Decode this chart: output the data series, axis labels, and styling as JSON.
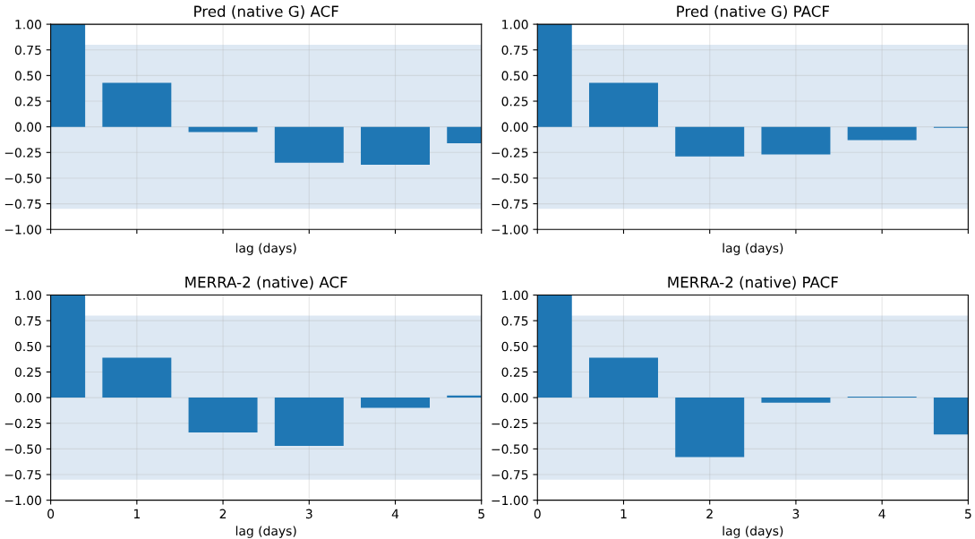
{
  "chart_data": [
    {
      "type": "bar",
      "title": "Pred (native G) ACF",
      "xlabel": "lag (days)",
      "x": [
        0,
        1,
        2,
        3,
        4,
        5
      ],
      "values": [
        1,
        0.43,
        -0.05,
        -0.35,
        -0.37,
        -0.16
      ],
      "color": "#1f77b4",
      "xlim": [
        0,
        5
      ],
      "xticks": [
        0,
        1,
        2,
        3,
        4,
        5
      ],
      "ylim": [
        -1,
        1
      ],
      "yticks": [
        {
          "value": -1,
          "label": "−1.00"
        },
        {
          "value": -0.75,
          "label": "−0.75"
        },
        {
          "value": -0.5,
          "label": "−0.50"
        },
        {
          "value": -0.25,
          "label": "−0.25"
        },
        {
          "value": 0,
          "label": "0.00"
        },
        {
          "value": 0.25,
          "label": "0.25"
        },
        {
          "value": 0.5,
          "label": "0.50"
        },
        {
          "value": 0.75,
          "label": "0.75"
        },
        {
          "value": 1,
          "label": "1.00"
        }
      ],
      "grid": true,
      "tick_labels": "y",
      "bands": [
        {
          "axis": "y",
          "from": -0.8,
          "to": 0.8,
          "color": "#dde8f3"
        }
      ]
    },
    {
      "type": "bar",
      "title": "Pred (native G) PACF",
      "xlabel": "lag (days)",
      "x": [
        0,
        1,
        2,
        3,
        4,
        5
      ],
      "values": [
        1,
        0.43,
        -0.29,
        -0.27,
        -0.13,
        -0.01
      ],
      "color": "#1f77b4",
      "xlim": [
        0,
        5
      ],
      "xticks": [
        0,
        1,
        2,
        3,
        4,
        5
      ],
      "ylim": [
        -1,
        1
      ],
      "yticks": [
        {
          "value": -1,
          "label": "−1.00"
        },
        {
          "value": -0.75,
          "label": "−0.75"
        },
        {
          "value": -0.5,
          "label": "−0.50"
        },
        {
          "value": -0.25,
          "label": "−0.25"
        },
        {
          "value": 0,
          "label": "0.00"
        },
        {
          "value": 0.25,
          "label": "0.25"
        },
        {
          "value": 0.5,
          "label": "0.50"
        },
        {
          "value": 0.75,
          "label": "0.75"
        },
        {
          "value": 1,
          "label": "1.00"
        }
      ],
      "grid": true,
      "tick_labels": "y",
      "bands": [
        {
          "axis": "y",
          "from": -0.8,
          "to": 0.8,
          "color": "#dde8f3"
        }
      ]
    },
    {
      "type": "bar",
      "title": "MERRA-2 (native) ACF",
      "xlabel": "lag (days)",
      "x": [
        0,
        1,
        2,
        3,
        4,
        5
      ],
      "values": [
        1,
        0.39,
        -0.34,
        -0.47,
        -0.1,
        0.02
      ],
      "color": "#1f77b4",
      "xlim": [
        0,
        5
      ],
      "xticks": [
        0,
        1,
        2,
        3,
        4,
        5
      ],
      "ylim": [
        -1,
        1
      ],
      "yticks": [
        {
          "value": -1,
          "label": "−1.00"
        },
        {
          "value": -0.75,
          "label": "−0.75"
        },
        {
          "value": -0.5,
          "label": "−0.50"
        },
        {
          "value": -0.25,
          "label": "−0.25"
        },
        {
          "value": 0,
          "label": "0.00"
        },
        {
          "value": 0.25,
          "label": "0.25"
        },
        {
          "value": 0.5,
          "label": "0.50"
        },
        {
          "value": 0.75,
          "label": "0.75"
        },
        {
          "value": 1,
          "label": "1.00"
        }
      ],
      "grid": true,
      "bands": [
        {
          "axis": "y",
          "from": -0.8,
          "to": 0.8,
          "color": "#dde8f3"
        }
      ]
    },
    {
      "type": "bar",
      "title": "MERRA-2 (native) PACF",
      "xlabel": "lag (days)",
      "x": [
        0,
        1,
        2,
        3,
        4,
        5
      ],
      "values": [
        1,
        0.39,
        -0.58,
        -0.05,
        0.01,
        -0.36
      ],
      "color": "#1f77b4",
      "xlim": [
        0,
        5
      ],
      "xticks": [
        0,
        1,
        2,
        3,
        4,
        5
      ],
      "ylim": [
        -1,
        1
      ],
      "yticks": [
        {
          "value": -1,
          "label": "−1.00"
        },
        {
          "value": -0.75,
          "label": "−0.75"
        },
        {
          "value": -0.5,
          "label": "−0.50"
        },
        {
          "value": -0.25,
          "label": "−0.25"
        },
        {
          "value": 0,
          "label": "0.00"
        },
        {
          "value": 0.25,
          "label": "0.25"
        },
        {
          "value": 0.5,
          "label": "0.50"
        },
        {
          "value": 0.75,
          "label": "0.75"
        },
        {
          "value": 1,
          "label": "1.00"
        }
      ],
      "grid": true,
      "bands": [
        {
          "axis": "y",
          "from": -0.8,
          "to": 0.8,
          "color": "#dde8f3"
        }
      ]
    }
  ]
}
